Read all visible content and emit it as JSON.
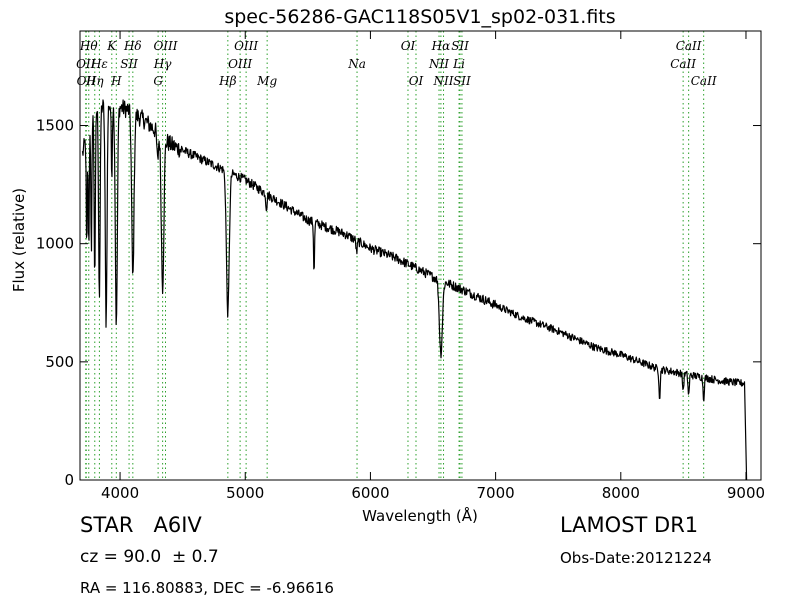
{
  "chart_data": {
    "type": "line",
    "title": "spec-56286-GAC118S05V1_sp02-031.fits",
    "xlabel": "Wavelength (Å)",
    "ylabel": "Flux (relative)",
    "xlim": [
      3680,
      9120
    ],
    "ylim": [
      0,
      1900
    ],
    "xticks": [
      4000,
      5000,
      6000,
      7000,
      8000,
      9000
    ],
    "yticks": [
      0,
      500,
      1000,
      1500
    ],
    "grid": false,
    "line_color": "#000000",
    "marker_color": "#2ca02c",
    "continuum": [
      [
        3700,
        1380
      ],
      [
        3780,
        1560
      ],
      [
        3900,
        1590
      ],
      [
        4050,
        1570
      ],
      [
        4200,
        1520
      ],
      [
        4400,
        1420
      ],
      [
        4600,
        1370
      ],
      [
        4800,
        1320
      ],
      [
        5000,
        1270
      ],
      [
        5200,
        1200
      ],
      [
        5500,
        1100
      ],
      [
        5800,
        1040
      ],
      [
        6000,
        980
      ],
      [
        6200,
        940
      ],
      [
        6500,
        860
      ],
      [
        6800,
        790
      ],
      [
        7000,
        740
      ],
      [
        7200,
        690
      ],
      [
        7500,
        630
      ],
      [
        7800,
        560
      ],
      [
        8000,
        530
      ],
      [
        8300,
        470
      ],
      [
        8600,
        440
      ],
      [
        8800,
        420
      ],
      [
        8950,
        410
      ]
    ],
    "absorption": [
      {
        "x": 3734,
        "depth": 500,
        "width": 4
      },
      {
        "x": 3750,
        "depth": 520,
        "width": 4
      },
      {
        "x": 3771,
        "depth": 620,
        "width": 4
      },
      {
        "x": 3798,
        "depth": 700,
        "width": 5
      },
      {
        "x": 3835,
        "depth": 800,
        "width": 6
      },
      {
        "x": 3889,
        "depth": 920,
        "width": 7
      },
      {
        "x": 3934,
        "depth": 300,
        "width": 4
      },
      {
        "x": 3970,
        "depth": 930,
        "width": 8
      },
      {
        "x": 4102,
        "depth": 700,
        "width": 9
      },
      {
        "x": 4300,
        "depth": 120,
        "width": 6
      },
      {
        "x": 4340,
        "depth": 630,
        "width": 10
      },
      {
        "x": 4861,
        "depth": 600,
        "width": 11
      },
      {
        "x": 5169,
        "depth": 60,
        "width": 5
      },
      {
        "x": 5550,
        "depth": 210,
        "width": 4
      },
      {
        "x": 5890,
        "depth": 50,
        "width": 5
      },
      {
        "x": 6563,
        "depth": 310,
        "width": 12
      },
      {
        "x": 8310,
        "depth": 120,
        "width": 5
      },
      {
        "x": 8498,
        "depth": 70,
        "width": 5
      },
      {
        "x": 8542,
        "depth": 90,
        "width": 5
      },
      {
        "x": 8662,
        "depth": 90,
        "width": 5
      }
    ],
    "endpoint": {
      "x": 9005,
      "y": 0
    },
    "line_markers": [
      {
        "x": 3726,
        "label": "OII",
        "row": 2
      },
      {
        "x": 3730,
        "label": "OII",
        "row": 3
      },
      {
        "x": 3750,
        "label": "Hθ",
        "row": 1
      },
      {
        "x": 3798,
        "label": "Hη",
        "row": 3
      },
      {
        "x": 3835,
        "label": "Hε",
        "row": 2
      },
      {
        "x": 3934,
        "label": "K",
        "row": 1
      },
      {
        "x": 3970,
        "label": "H",
        "row": 3
      },
      {
        "x": 4072,
        "label": "SII",
        "row": 2
      },
      {
        "x": 4102,
        "label": "Hδ",
        "row": 1
      },
      {
        "x": 4304,
        "label": "G",
        "row": 3
      },
      {
        "x": 4340,
        "label": "Hγ",
        "row": 2
      },
      {
        "x": 4363,
        "label": "OIII",
        "row": 1
      },
      {
        "x": 4861,
        "label": "Hβ",
        "row": 3
      },
      {
        "x": 4959,
        "label": "OIII",
        "row": 2
      },
      {
        "x": 5007,
        "label": "OIII",
        "row": 1
      },
      {
        "x": 5175,
        "label": "Mg",
        "row": 3
      },
      {
        "x": 5893,
        "label": "Na",
        "row": 2
      },
      {
        "x": 6300,
        "label": "OI",
        "row": 1
      },
      {
        "x": 6364,
        "label": "OI",
        "row": 3
      },
      {
        "x": 6548,
        "label": "NII",
        "row": 2
      },
      {
        "x": 6563,
        "label": "Hα",
        "row": 1
      },
      {
        "x": 6584,
        "label": "NII",
        "row": 3
      },
      {
        "x": 6708,
        "label": "Li",
        "row": 2
      },
      {
        "x": 6716,
        "label": "SII",
        "row": 1
      },
      {
        "x": 6731,
        "label": "SII",
        "row": 3
      },
      {
        "x": 8498,
        "label": "CaII",
        "row": 2
      },
      {
        "x": 8542,
        "label": "CaII",
        "row": 1
      },
      {
        "x": 8662,
        "label": "CaII",
        "row": 3
      }
    ]
  },
  "info": {
    "star_label": "STAR   A6IV",
    "cz_label": "cz = 90.0  ± 0.7",
    "radec_label": "RA = 116.80883, DEC = -6.96616",
    "survey_label": "LAMOST DR1",
    "obsdate_label": "Obs-Date:20121224"
  }
}
